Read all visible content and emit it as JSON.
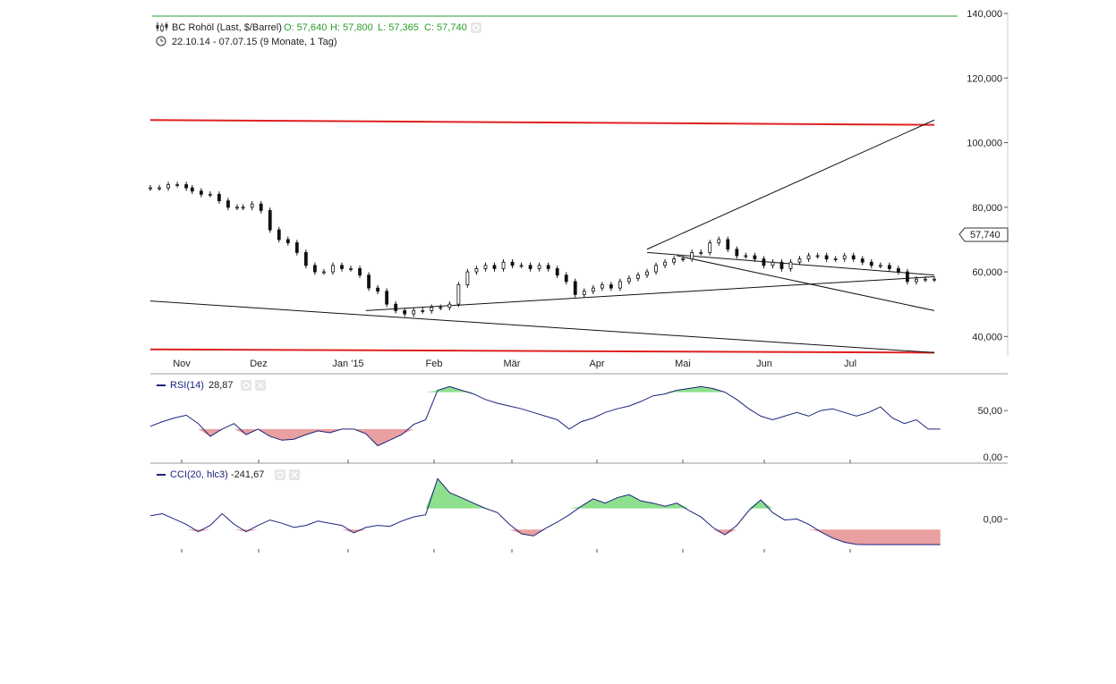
{
  "header": {
    "instrument": "BC Rohöl (Last, $/Barrel)",
    "ohlc": {
      "open": "O: 57,640",
      "high": "H: 57,800",
      "low": "L: 57,365",
      "close": "C: 57,740"
    },
    "period": "22.10.14 - 07.07.15 (9 Monate, 1 Tag)"
  },
  "colors": {
    "support_resistance": "#e02020",
    "trendline": "#111111",
    "indicator_line": "#1a237e",
    "overbought_fill": "#8ee08e",
    "oversold_fill": "#e8a0a0",
    "header_accent": "#2a9d2a"
  },
  "icons": {
    "ohlc_icon": "candlestick-icon",
    "period_icon": "clock-icon",
    "settings_icon": "gear-icon",
    "close_icon": "close-icon"
  },
  "chart_data": [
    {
      "type": "candlestick",
      "title": "BC Rohöl (Last, $/Barrel)",
      "x_ticks": [
        "Nov",
        "Dez",
        "Jan '15",
        "Feb",
        "Mär",
        "Apr",
        "Mai",
        "Jun",
        "Jul"
      ],
      "y_ticks": [
        "140,000",
        "120,000",
        "100,000",
        "80,000",
        "60,000",
        "40,000"
      ],
      "y_tick_values": [
        140,
        120,
        100,
        80,
        60,
        40
      ],
      "ylim": [
        34,
        140
      ],
      "last_value_label": "57,740",
      "last_value": 57.74,
      "xlim_days": [
        0,
        300
      ],
      "series": [
        {
          "x": [
            0,
            3,
            6,
            9,
            12,
            14,
            17,
            20,
            23,
            26,
            29,
            31,
            34,
            37,
            40,
            43,
            46,
            49,
            52,
            55,
            58,
            61,
            64,
            67,
            70,
            73,
            76,
            79,
            82,
            85,
            88,
            91,
            94,
            97,
            100,
            103,
            106,
            109,
            112,
            115,
            118,
            121,
            124,
            127,
            130,
            133,
            136,
            139,
            142,
            145,
            148,
            151,
            154,
            157,
            160,
            163,
            166,
            169,
            172,
            175,
            178,
            181,
            184,
            187,
            190,
            193,
            196,
            199,
            202,
            205,
            208,
            211,
            214,
            217,
            220,
            223,
            226,
            229,
            232,
            235,
            238,
            241,
            244,
            247,
            250,
            253,
            256,
            259,
            262
          ],
          "close": [
            86,
            86,
            87,
            87,
            86,
            85,
            84,
            84,
            82,
            80,
            80,
            80,
            81,
            79,
            73,
            70,
            69,
            66,
            62,
            60,
            60,
            62,
            61,
            61,
            59,
            55,
            54,
            50,
            48,
            47,
            48,
            48,
            49,
            49,
            50,
            56,
            60,
            61,
            62,
            61,
            63,
            62,
            62,
            61,
            62,
            61,
            59,
            57,
            53,
            54,
            55,
            56,
            55,
            57,
            58,
            59,
            60,
            62,
            63,
            64,
            64,
            66,
            66,
            69,
            70,
            67,
            65,
            65,
            64,
            62,
            63,
            61,
            63,
            64,
            65,
            65,
            64,
            64,
            65,
            64,
            63,
            62,
            62,
            61,
            60,
            57,
            57.74,
            57.74,
            57.74
          ]
        }
      ],
      "support_resistance_lines": [
        {
          "from": {
            "x": 0,
            "y": 107
          },
          "to": {
            "x": 262,
            "y": 105.5
          }
        },
        {
          "from": {
            "x": 0,
            "y": 36
          },
          "to": {
            "x": 262,
            "y": 35
          }
        }
      ],
      "trendlines": [
        {
          "from": {
            "x": 0,
            "y": 51
          },
          "to": {
            "x": 262,
            "y": 35
          }
        },
        {
          "from": {
            "x": 72,
            "y": 48
          },
          "to": {
            "x": 262,
            "y": 58.5
          }
        },
        {
          "from": {
            "x": 166,
            "y": 67
          },
          "to": {
            "x": 262,
            "y": 107
          }
        },
        {
          "from": {
            "x": 166,
            "y": 66
          },
          "to": {
            "x": 262,
            "y": 59
          }
        },
        {
          "from": {
            "x": 176,
            "y": 65
          },
          "to": {
            "x": 262,
            "y": 48
          }
        }
      ]
    },
    {
      "type": "line",
      "title": "RSI(14)",
      "value_label": "28,87",
      "y_ticks": [
        "50,00",
        "0,00"
      ],
      "y_tick_values": [
        50,
        0
      ],
      "ylim": [
        -5,
        88
      ],
      "upper_band": 70,
      "lower_band": 30,
      "series": [
        {
          "x": [
            0,
            4,
            8,
            12,
            16,
            20,
            24,
            28,
            32,
            36,
            40,
            44,
            48,
            52,
            56,
            60,
            64,
            68,
            72,
            76,
            80,
            84,
            88,
            92,
            96,
            100,
            104,
            108,
            112,
            116,
            120,
            124,
            128,
            132,
            136,
            140,
            144,
            148,
            152,
            156,
            160,
            164,
            168,
            172,
            176,
            180,
            184,
            188,
            192,
            196,
            200,
            204,
            208,
            212,
            216,
            220,
            224,
            228,
            232,
            236,
            240,
            244,
            248,
            252,
            256,
            260,
            264
          ],
          "values": [
            33,
            38,
            42,
            45,
            36,
            22,
            30,
            36,
            24,
            30,
            22,
            18,
            19,
            24,
            28,
            26,
            30,
            30,
            25,
            12,
            18,
            24,
            35,
            40,
            72,
            76,
            72,
            68,
            62,
            58,
            55,
            52,
            48,
            44,
            40,
            30,
            38,
            42,
            48,
            52,
            55,
            60,
            66,
            68,
            72,
            74,
            76,
            74,
            70,
            62,
            52,
            44,
            40,
            44,
            48,
            44,
            50,
            52,
            48,
            44,
            48,
            54,
            42,
            36,
            40,
            30,
            30
          ]
        }
      ]
    },
    {
      "type": "line",
      "title": "CCI(20, hlc3)",
      "value_label": "-241,67",
      "y_ticks": [
        "0,00"
      ],
      "y_tick_values": [
        0
      ],
      "ylim": [
        -300,
        510
      ],
      "upper_band": 100,
      "lower_band": -100,
      "series": [
        {
          "x": [
            0,
            4,
            8,
            12,
            16,
            20,
            24,
            28,
            32,
            36,
            40,
            44,
            48,
            52,
            56,
            60,
            64,
            68,
            72,
            76,
            80,
            84,
            88,
            92,
            96,
            100,
            104,
            108,
            112,
            116,
            120,
            124,
            128,
            132,
            136,
            140,
            144,
            148,
            152,
            156,
            160,
            164,
            168,
            172,
            176,
            180,
            184,
            188,
            192,
            196,
            200,
            204,
            208,
            212,
            216,
            220,
            224,
            228,
            232,
            236,
            240,
            244,
            248,
            252,
            256,
            260,
            264
          ],
          "values": [
            30,
            50,
            0,
            -50,
            -120,
            -60,
            50,
            -50,
            -120,
            -60,
            -10,
            -40,
            -80,
            -60,
            -20,
            -40,
            -60,
            -130,
            -80,
            -60,
            -70,
            -20,
            20,
            40,
            380,
            250,
            200,
            150,
            100,
            60,
            -50,
            -140,
            -160,
            -90,
            -30,
            40,
            120,
            190,
            150,
            200,
            230,
            170,
            150,
            120,
            150,
            80,
            20,
            -80,
            -150,
            -60,
            80,
            180,
            60,
            -10,
            0,
            -50,
            -120,
            -180,
            -220,
            -240,
            -241.67,
            -241.67,
            -241.67,
            -241.67,
            -241.67,
            -241.67,
            -241.67
          ]
        }
      ]
    }
  ]
}
